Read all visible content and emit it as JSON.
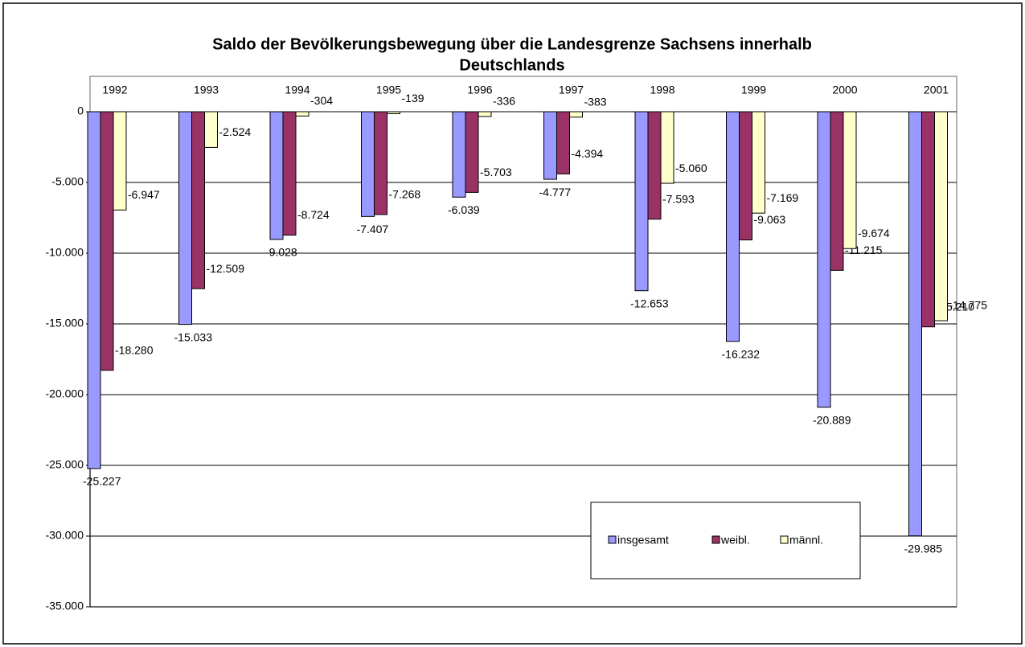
{
  "chart_data": {
    "type": "bar",
    "title": [
      "Saldo der Bevölkerungsbewegung über die Landesgrenze Sachsens innerhalb",
      "Deutschlands"
    ],
    "categories": [
      "1992",
      "1993",
      "1994",
      "1995",
      "1996",
      "1997",
      "1998",
      "1999",
      "2000",
      "2001"
    ],
    "series": [
      {
        "name": "insgesamt",
        "color": "#9999ff",
        "values": [
          -25227,
          -15033,
          -9028,
          -7407,
          -6039,
          -4777,
          -12653,
          -16232,
          -20889,
          -29985
        ],
        "value_labels": [
          "-25.227",
          "-15.033",
          "-9.028",
          "-7.407",
          "-6.039",
          "-4.777",
          "-12.653",
          "-16.232",
          "-20.889",
          "-29.985"
        ]
      },
      {
        "name": "weibl.",
        "color": "#993366",
        "values": [
          -18280,
          -12509,
          -8724,
          -7268,
          -5703,
          -4394,
          -7593,
          -9063,
          -11215,
          -15210
        ],
        "value_labels": [
          "-18.280",
          "-12.509",
          "-8.724",
          "-7.268",
          "-5.703",
          "-4.394",
          "-7.593",
          "-9.063",
          "-11.215",
          "-15.210"
        ]
      },
      {
        "name": "männl.",
        "color": "#ffffcc",
        "values": [
          -6947,
          -2524,
          -304,
          -139,
          -336,
          -383,
          -5060,
          -7169,
          -9674,
          -14775
        ],
        "value_labels": [
          "-6.947",
          "-2.524",
          "-304",
          "-139",
          "-336",
          "-383",
          "-5.060",
          "-7.169",
          "-9.674",
          "-14.775"
        ]
      }
    ],
    "ylim": [
      -35000,
      0
    ],
    "yticks": [
      0,
      {
        "value": -5000,
        "label": "-5.000"
      },
      {
        "value": -10000,
        "label": "-10.000"
      },
      {
        "value": -15000,
        "label": "-15.000"
      },
      {
        "value": -20000,
        "label": "-20.000"
      },
      {
        "value": -25000,
        "label": "-25.000"
      },
      {
        "value": -30000,
        "label": "-30.000"
      },
      {
        "value": -35000,
        "label": "-35.000"
      }
    ],
    "grid": true,
    "legend": "bottom-right"
  }
}
